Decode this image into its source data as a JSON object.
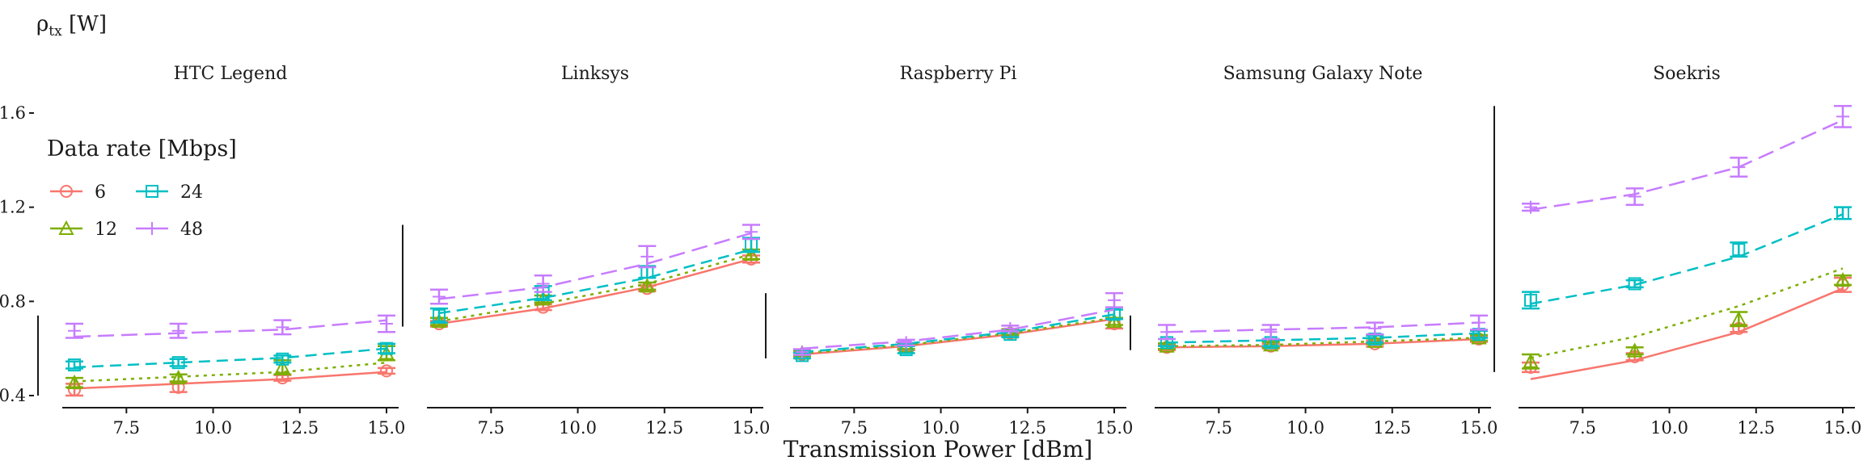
{
  "chart_data": {
    "type": "line",
    "ylabel_main": "ρ",
    "ylabel_sub": "tx",
    "ylabel_unit": " [W]",
    "xlabel": "Transmission Power [dBm]",
    "xlim": [
      6,
      15
    ],
    "ylim": [
      0.4,
      1.6
    ],
    "x_ticks": [
      7.5,
      10.0,
      12.5,
      15.0
    ],
    "x_tick_labels": [
      "7.5",
      "10.0",
      "12.5",
      "15.0"
    ],
    "y_ticks": [
      0.4,
      0.8,
      1.2,
      1.6
    ],
    "y_tick_labels": [
      "0.4",
      "0.8",
      "1.2",
      "1.6"
    ],
    "legend": {
      "title": "Data rate [Mbps]",
      "entries": [
        {
          "label": "6",
          "color": "#F8766D",
          "shape": "circle",
          "dash": "solid"
        },
        {
          "label": "12",
          "color": "#7CAE00",
          "shape": "triangle",
          "dash": "dotted"
        },
        {
          "label": "24",
          "color": "#00BFC4",
          "shape": "square",
          "dash": "dashed"
        },
        {
          "label": "48",
          "color": "#C77CFF",
          "shape": "plus",
          "dash": "longdash"
        }
      ]
    },
    "x": [
      6,
      9,
      12,
      15
    ],
    "panels": [
      {
        "title": "HTC Legend",
        "series": [
          {
            "points": [
              0.425,
              0.435,
              0.475,
              0.505
            ],
            "err": [
              0.025,
              0.02,
              0.012,
              0.012
            ],
            "fit": [
              0.43,
              0.45,
              0.47,
              0.5
            ]
          },
          {
            "points": [
              0.455,
              0.475,
              0.52,
              0.58
            ],
            "err": [
              0.02,
              0.015,
              0.03,
              0.03
            ],
            "fit": [
              0.46,
              0.48,
              0.5,
              0.54
            ]
          },
          {
            "points": [
              0.53,
              0.54,
              0.555,
              0.6
            ],
            "err": [
              0.015,
              0.015,
              0.015,
              0.02
            ],
            "fit": [
              0.52,
              0.54,
              0.56,
              0.6
            ]
          },
          {
            "points": [
              0.675,
              0.675,
              0.69,
              0.705
            ],
            "err": [
              0.03,
              0.03,
              0.03,
              0.035
            ],
            "fit": [
              0.65,
              0.665,
              0.68,
              0.72
            ]
          }
        ]
      },
      {
        "title": "Linksys",
        "series": [
          {
            "points": [
              0.705,
              0.775,
              0.855,
              0.98
            ],
            "err": [
              0.012,
              0.012,
              0.012,
              0.015
            ],
            "fit": [
              0.705,
              0.77,
              0.86,
              0.98
            ]
          },
          {
            "points": [
              0.715,
              0.81,
              0.865,
              1.0
            ],
            "err": [
              0.015,
              0.015,
              0.015,
              0.02
            ],
            "fit": [
              0.715,
              0.79,
              0.875,
              1.0
            ]
          },
          {
            "points": [
              0.74,
              0.835,
              0.925,
              1.04
            ],
            "err": [
              0.03,
              0.03,
              0.025,
              0.03
            ],
            "fit": [
              0.75,
              0.815,
              0.9,
              1.02
            ]
          },
          {
            "points": [
              0.82,
              0.875,
              0.99,
              1.095
            ],
            "err": [
              0.03,
              0.035,
              0.045,
              0.03
            ],
            "fit": [
              0.81,
              0.86,
              0.96,
              1.09
            ]
          }
        ]
      },
      {
        "title": "Raspberry Pi",
        "series": [
          {
            "points": [
              0.575,
              0.605,
              0.665,
              0.705
            ],
            "err": [
              0.015,
              0.012,
              0.012,
              0.02
            ],
            "fit": [
              0.575,
              0.61,
              0.66,
              0.725
            ]
          },
          {
            "points": [
              0.58,
              0.61,
              0.67,
              0.715
            ],
            "err": [
              0.012,
              0.012,
              0.012,
              0.015
            ],
            "fit": [
              0.58,
              0.615,
              0.665,
              0.73
            ]
          },
          {
            "points": [
              0.57,
              0.595,
              0.66,
              0.745
            ],
            "err": [
              0.012,
              0.015,
              0.012,
              0.02
            ],
            "fit": [
              0.585,
              0.62,
              0.67,
              0.745
            ]
          },
          {
            "points": [
              0.585,
              0.625,
              0.685,
              0.805
            ],
            "err": [
              0.012,
              0.012,
              0.012,
              0.03
            ],
            "fit": [
              0.6,
              0.63,
              0.68,
              0.765
            ]
          }
        ]
      },
      {
        "title": "Samsung Galaxy Note",
        "series": [
          {
            "points": [
              0.605,
              0.61,
              0.62,
              0.64
            ],
            "err": [
              0.012,
              0.01,
              0.012,
              0.012
            ],
            "fit": [
              0.605,
              0.61,
              0.62,
              0.64
            ]
          },
          {
            "points": [
              0.61,
              0.615,
              0.63,
              0.645
            ],
            "err": [
              0.012,
              0.012,
              0.012,
              0.012
            ],
            "fit": [
              0.61,
              0.615,
              0.63,
              0.645
            ]
          },
          {
            "points": [
              0.625,
              0.625,
              0.64,
              0.66
            ],
            "err": [
              0.015,
              0.015,
              0.015,
              0.015
            ],
            "fit": [
              0.625,
              0.635,
              0.645,
              0.665
            ]
          },
          {
            "points": [
              0.67,
              0.67,
              0.685,
              0.71
            ],
            "err": [
              0.03,
              0.03,
              0.025,
              0.03
            ],
            "fit": [
              0.67,
              0.68,
              0.69,
              0.71
            ]
          }
        ]
      },
      {
        "title": "Soekris",
        "series": [
          {
            "points": [
              0.52,
              0.565,
              0.685,
              0.87
            ],
            "err": [
              0.02,
              0.015,
              0.015,
              0.03
            ],
            "fit": [
              0.47,
              0.55,
              0.67,
              0.855
            ]
          },
          {
            "points": [
              0.545,
              0.59,
              0.725,
              0.89
            ],
            "err": [
              0.03,
              0.015,
              0.03,
              0.02
            ],
            "fit": [
              0.56,
              0.65,
              0.78,
              0.94
            ]
          },
          {
            "points": [
              0.805,
              0.875,
              1.02,
              1.175
            ],
            "err": [
              0.035,
              0.015,
              0.03,
              0.025
            ],
            "fit": [
              0.79,
              0.87,
              0.99,
              1.17
            ]
          },
          {
            "points": [
              1.2,
              1.245,
              1.37,
              1.585
            ],
            "err": [
              0.015,
              0.035,
              0.04,
              0.045
            ],
            "fit": [
              1.19,
              1.255,
              1.37,
              1.57
            ]
          }
        ]
      }
    ]
  }
}
